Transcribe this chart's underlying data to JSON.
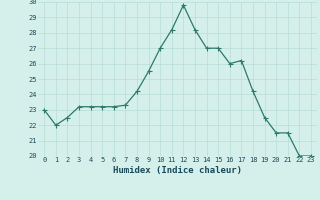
{
  "x": [
    0,
    1,
    2,
    3,
    4,
    5,
    6,
    7,
    8,
    9,
    10,
    11,
    12,
    13,
    14,
    15,
    16,
    17,
    18,
    19,
    20,
    21,
    22,
    23
  ],
  "y": [
    23.0,
    22.0,
    22.5,
    23.2,
    23.2,
    23.2,
    23.2,
    23.3,
    24.2,
    25.5,
    27.0,
    28.2,
    29.8,
    28.2,
    27.0,
    27.0,
    26.0,
    26.2,
    24.2,
    22.5,
    21.5,
    21.5,
    20.0,
    20.0
  ],
  "line_color": "#2d7a6a",
  "marker": "P",
  "marker_size": 2.0,
  "bg_color": "#d5f0eb",
  "grid_color": "#b8ddd7",
  "xlabel": "Humidex (Indice chaleur)",
  "ylim": [
    20,
    30
  ],
  "xlim_min": -0.5,
  "xlim_max": 23.5,
  "yticks": [
    20,
    21,
    22,
    23,
    24,
    25,
    26,
    27,
    28,
    29,
    30
  ],
  "xticks": [
    0,
    1,
    2,
    3,
    4,
    5,
    6,
    7,
    8,
    9,
    10,
    11,
    12,
    13,
    14,
    15,
    16,
    17,
    18,
    19,
    20,
    21,
    22,
    23
  ],
  "font_color": "#1a4a5a",
  "tick_fontsize": 5.0,
  "label_fontsize": 6.5,
  "linewidth": 0.9
}
